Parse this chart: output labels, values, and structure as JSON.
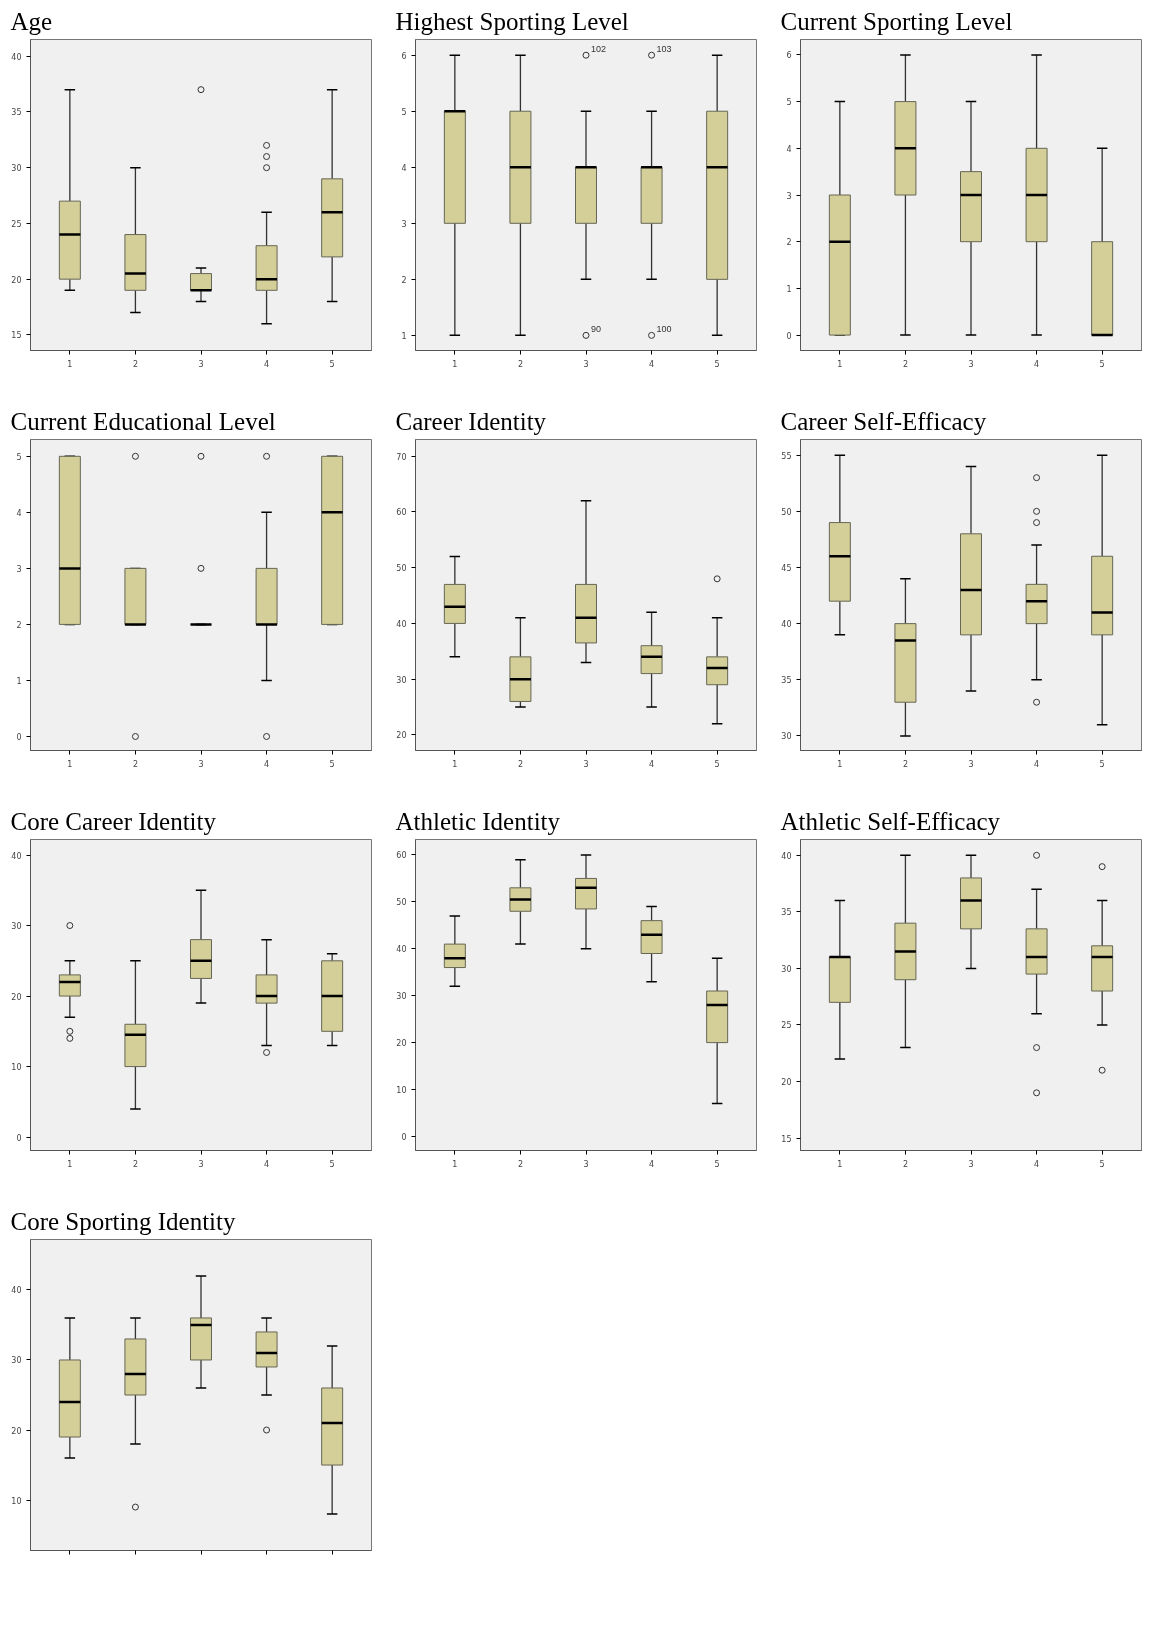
{
  "chart_data": [
    {
      "type": "box",
      "title": "Age",
      "categories": [
        "1",
        "2",
        "3",
        "4",
        "5"
      ],
      "color": "#d4cf98",
      "ylim": [
        13.6,
        41.5
      ],
      "yticks": [
        15,
        20,
        25,
        30,
        35,
        40
      ],
      "grid": false,
      "marker": "circle",
      "boxes": [
        {
          "low": 19,
          "q1": 20,
          "median": 24,
          "q3": 27,
          "high": 37
        },
        {
          "low": 17,
          "q1": 19,
          "median": 20.5,
          "q3": 24,
          "high": 30
        },
        {
          "low": 18,
          "q1": 19,
          "median": 19,
          "q3": 20.5,
          "high": 21,
          "outliers": [
            37
          ]
        },
        {
          "low": 16,
          "q1": 19,
          "median": 20,
          "q3": 23,
          "high": 26,
          "outliers": [
            30,
            31,
            32
          ]
        },
        {
          "low": 18,
          "q1": 22,
          "median": 26,
          "q3": 29,
          "high": 37
        }
      ]
    },
    {
      "type": "box",
      "title": "Highest Sporting Level",
      "categories": [
        "1",
        "2",
        "3",
        "4",
        "5"
      ],
      "color": "#d4cf98",
      "ylim": [
        0.73,
        6.28
      ],
      "yticks": [
        1,
        2,
        3,
        4,
        5,
        6
      ],
      "grid": false,
      "marker": "circle",
      "boxes": [
        {
          "low": 1,
          "q1": 3,
          "median": 5,
          "q3": 5,
          "high": 6
        },
        {
          "low": 1,
          "q1": 3,
          "median": 4,
          "q3": 5,
          "high": 6
        },
        {
          "low": 2,
          "q1": 3,
          "median": 4,
          "q3": 4,
          "high": 5,
          "outliers": [
            1,
            6
          ]
        },
        {
          "low": 2,
          "q1": 3,
          "median": 4,
          "q3": 4,
          "high": 5,
          "outliers": [
            1,
            6
          ]
        },
        {
          "low": 1,
          "q1": 2,
          "median": 4,
          "q3": 5,
          "high": 6
        }
      ],
      "annotations": [
        "90",
        "102",
        "100",
        "103"
      ]
    },
    {
      "type": "box",
      "title": "Current Sporting Level",
      "categories": [
        "1",
        "2",
        "3",
        "4",
        "5"
      ],
      "color": "#d4cf98",
      "ylim": [
        -0.33,
        6.33
      ],
      "yticks": [
        0,
        1,
        2,
        3,
        4,
        5,
        6
      ],
      "grid": false,
      "marker": "circle",
      "boxes": [
        {
          "low": 0,
          "q1": 0,
          "median": 2,
          "q3": 3,
          "high": 5
        },
        {
          "low": 0,
          "q1": 3,
          "median": 4,
          "q3": 5,
          "high": 6
        },
        {
          "low": 0,
          "q1": 2,
          "median": 3,
          "q3": 3.5,
          "high": 5
        },
        {
          "low": 0,
          "q1": 2,
          "median": 3,
          "q3": 4,
          "high": 6
        },
        {
          "low": 0,
          "q1": 0,
          "median": 0,
          "q3": 2,
          "high": 4
        }
      ]
    },
    {
      "type": "box",
      "title": "Current Educational Level",
      "categories": [
        "1",
        "2",
        "3",
        "4",
        "5"
      ],
      "color": "#d4cf98",
      "ylim": [
        -0.25,
        5.3
      ],
      "yticks": [
        0,
        1,
        2,
        3,
        4,
        5
      ],
      "grid": false,
      "marker": "circle",
      "boxes": [
        {
          "low": 2,
          "q1": 2,
          "median": 3,
          "q3": 5,
          "high": 5
        },
        {
          "low": 2,
          "q1": 2,
          "median": 2,
          "q3": 3,
          "high": 3,
          "outliers": [
            0,
            5
          ]
        },
        {
          "low": 2,
          "q1": 2,
          "median": 2,
          "q3": 2,
          "high": 2,
          "outliers": [
            3,
            5
          ]
        },
        {
          "low": 1,
          "q1": 2,
          "median": 2,
          "q3": 3,
          "high": 4,
          "outliers": [
            0,
            5
          ]
        },
        {
          "low": 2,
          "q1": 2,
          "median": 4,
          "q3": 5,
          "high": 5
        }
      ]
    },
    {
      "type": "box",
      "title": "Career Identity",
      "categories": [
        "1",
        "2",
        "3",
        "4",
        "5"
      ],
      "color": "#d4cf98",
      "ylim": [
        17.2,
        73
      ],
      "yticks": [
        20,
        30,
        40,
        50,
        60,
        70
      ],
      "grid": false,
      "marker": "circle",
      "boxes": [
        {
          "low": 34,
          "q1": 40,
          "median": 43,
          "q3": 47,
          "high": 52
        },
        {
          "low": 25,
          "q1": 26,
          "median": 30,
          "q3": 34,
          "high": 41
        },
        {
          "low": 33,
          "q1": 36.5,
          "median": 41,
          "q3": 47,
          "high": 62
        },
        {
          "low": 25,
          "q1": 31,
          "median": 34,
          "q3": 36,
          "high": 42
        },
        {
          "low": 22,
          "q1": 29,
          "median": 32,
          "q3": 34,
          "high": 41,
          "outliers": [
            48
          ]
        }
      ]
    },
    {
      "type": "box",
      "title": "Career Self-Efficacy",
      "categories": [
        "1",
        "2",
        "3",
        "4",
        "5"
      ],
      "color": "#d4cf98",
      "ylim": [
        28.7,
        56.4
      ],
      "yticks": [
        30,
        35,
        40,
        45,
        50,
        55
      ],
      "grid": false,
      "marker": "circle",
      "boxes": [
        {
          "low": 39,
          "q1": 42,
          "median": 46,
          "q3": 49,
          "high": 55
        },
        {
          "low": 30,
          "q1": 33,
          "median": 38.5,
          "q3": 40,
          "high": 44
        },
        {
          "low": 34,
          "q1": 39,
          "median": 43,
          "q3": 48,
          "high": 54
        },
        {
          "low": 35,
          "q1": 40,
          "median": 42,
          "q3": 43.5,
          "high": 47,
          "outliers": [
            33,
            49,
            50,
            53
          ]
        },
        {
          "low": 31,
          "q1": 39,
          "median": 41,
          "q3": 46,
          "high": 55
        }
      ]
    },
    {
      "type": "box",
      "title": "Core Career Identity",
      "categories": [
        "1",
        "2",
        "3",
        "4",
        "5"
      ],
      "color": "#d4cf98",
      "ylim": [
        -1.9,
        42.2
      ],
      "yticks": [
        0,
        10,
        20,
        30,
        40
      ],
      "grid": false,
      "marker": "circle",
      "boxes": [
        {
          "low": 17,
          "q1": 20,
          "median": 22,
          "q3": 23,
          "high": 25,
          "outliers": [
            14,
            15,
            30
          ]
        },
        {
          "low": 4,
          "q1": 10,
          "median": 14.5,
          "q3": 16,
          "high": 25
        },
        {
          "low": 19,
          "q1": 22.5,
          "median": 25,
          "q3": 28,
          "high": 35
        },
        {
          "low": 13,
          "q1": 19,
          "median": 20,
          "q3": 23,
          "high": 28,
          "outliers": [
            12
          ]
        },
        {
          "low": 13,
          "q1": 15,
          "median": 20,
          "q3": 25,
          "high": 26
        }
      ]
    },
    {
      "type": "box",
      "title": "Athletic Identity",
      "categories": [
        "1",
        "2",
        "3",
        "4",
        "5"
      ],
      "color": "#d4cf98",
      "ylim": [
        -3,
        63.3
      ],
      "yticks": [
        0,
        10,
        20,
        30,
        40,
        50,
        60
      ],
      "grid": false,
      "marker": "circle",
      "boxes": [
        {
          "low": 32,
          "q1": 36,
          "median": 38,
          "q3": 41,
          "high": 47
        },
        {
          "low": 41,
          "q1": 48,
          "median": 50.5,
          "q3": 53,
          "high": 59
        },
        {
          "low": 40,
          "q1": 48.5,
          "median": 53,
          "q3": 55,
          "high": 60
        },
        {
          "low": 33,
          "q1": 39,
          "median": 43,
          "q3": 46,
          "high": 49
        },
        {
          "low": 7,
          "q1": 20,
          "median": 28,
          "q3": 31,
          "high": 38
        }
      ]
    },
    {
      "type": "box",
      "title": "Athletic Self-Efficacy",
      "categories": [
        "1",
        "2",
        "3",
        "4",
        "5"
      ],
      "color": "#d4cf98",
      "ylim": [
        13.9,
        41.4
      ],
      "yticks": [
        15,
        20,
        25,
        30,
        35,
        40
      ],
      "grid": false,
      "marker": "circle",
      "boxes": [
        {
          "low": 22,
          "q1": 27,
          "median": 31,
          "q3": 31,
          "high": 36
        },
        {
          "low": 23,
          "q1": 29,
          "median": 31.5,
          "q3": 34,
          "high": 40
        },
        {
          "low": 30,
          "q1": 33.5,
          "median": 36,
          "q3": 38,
          "high": 40
        },
        {
          "low": 26,
          "q1": 29.5,
          "median": 31,
          "q3": 33.5,
          "high": 37,
          "outliers": [
            19,
            23,
            40
          ]
        },
        {
          "low": 25,
          "q1": 28,
          "median": 31,
          "q3": 32,
          "high": 36,
          "outliers": [
            21,
            39
          ]
        }
      ]
    },
    {
      "type": "box",
      "title": "Core Sporting Identity",
      "categories": [
        null,
        null,
        null,
        null,
        null
      ],
      "color": "#d4cf98",
      "ylim": [
        2.8,
        47.2
      ],
      "yticks": [
        10,
        20,
        30,
        40
      ],
      "grid": false,
      "marker": "circle",
      "boxes": [
        {
          "low": 16,
          "q1": 19,
          "median": 24,
          "q3": 30,
          "high": 36
        },
        {
          "low": 18,
          "q1": 25,
          "median": 28,
          "q3": 33,
          "high": 36,
          "outliers": [
            9
          ]
        },
        {
          "low": 26,
          "q1": 30,
          "median": 35,
          "q3": 36,
          "high": 42
        },
        {
          "low": 25,
          "q1": 29,
          "median": 31,
          "q3": 34,
          "high": 36,
          "outliers": [
            20
          ]
        },
        {
          "low": 8,
          "q1": 15,
          "median": 21,
          "q3": 26,
          "high": 32
        }
      ]
    }
  ]
}
